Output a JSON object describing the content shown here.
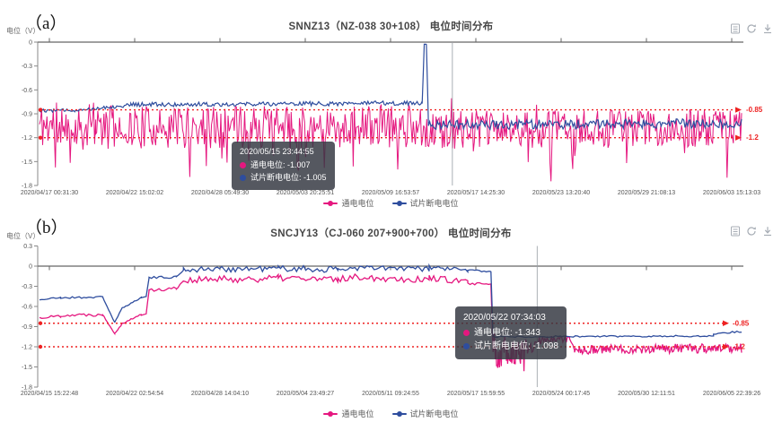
{
  "figure_labels": {
    "a": "（a）",
    "b": "（b）"
  },
  "colors": {
    "pink": "#e5177f",
    "blue": "#2e4d9e",
    "threshold_red": "#ee2222",
    "axis": "#666666",
    "tick_text": "#555555",
    "pointer_gray": "#9aa0a6",
    "tooltip_bg": "rgba(52,56,66,0.84)",
    "icon_gray": "#a7adb5"
  },
  "charts": [
    {
      "id": "a",
      "title": "SNNZ13（NZ-038  30+108） 电位时间分布",
      "y_axis_name": "电位（V）",
      "toolbox": [
        "data-view-icon",
        "refresh-icon",
        "download-icon"
      ],
      "legend": [
        {
          "key": "on-potential",
          "name": "通电电位",
          "color": "#e5177f"
        },
        {
          "key": "coupon-off-potential",
          "name": "试片断电电位",
          "color": "#2e4d9e"
        }
      ],
      "tooltip": {
        "header": "2020/05/15 23:44:55",
        "rows": [
          {
            "name": "通电电位",
            "value": "-1.007",
            "color": "#e5177f"
          },
          {
            "name": "试片断电电位",
            "value": "-1.005",
            "color": "#2e4d9e"
          }
        ]
      },
      "chart_data": {
        "type": "line",
        "title": "SNNZ13（NZ-038  30+108） 电位时间分布",
        "ylabel": "电位（V）",
        "ylim": [
          -1.8,
          0
        ],
        "grid": false,
        "legend_position": "bottom",
        "x_ticks": [
          "2020/04/17 00:31:30",
          "2020/04/22 15:02:02",
          "2020/04/28 05:49:30",
          "2020/05/03 20:25:51",
          "2020/05/09 16:53:57",
          "2020/05/17 14:25:30",
          "2020/05/23 13:20:40",
          "2020/05/29 21:08:13",
          "2020/06/03 15:13:03"
        ],
        "y_tick_values": [
          0,
          -0.3,
          -0.6,
          -0.9,
          -1.2,
          -1.5,
          -1.8
        ],
        "y_tick_labels": [
          "0",
          "-0.3",
          "-0.6",
          "-0.9",
          "-1.2",
          "-1.5",
          "-1.8"
        ],
        "threshold_lines": [
          {
            "value": -0.85,
            "label": "-0.85"
          },
          {
            "value": -1.2,
            "label": "-1.2"
          }
        ],
        "axis_pointer_x_frac": 0.588,
        "series": [
          {
            "key": "on-potential",
            "name": "通电电位",
            "color": "#e5177f",
            "seed": 11,
            "density": 680,
            "width": 1,
            "segments": [
              {
                "t0": 0.0,
                "t1": 0.08,
                "v0": -1.04,
                "v1": -1.06,
                "a": 0.3,
                "spiky": true
              },
              {
                "t0": 0.08,
                "t1": 0.55,
                "v0": -1.07,
                "v1": -1.05,
                "a": 0.27,
                "spiky": true
              },
              {
                "t0": 0.55,
                "t1": 1.0,
                "v0": -1.1,
                "v1": -1.08,
                "a": 0.24,
                "spiky": true
              }
            ]
          },
          {
            "key": "coupon-off-potential",
            "name": "试片断电电位",
            "color": "#2e4d9e",
            "seed": 12,
            "density": 560,
            "width": 1.2,
            "segments": [
              {
                "t0": 0.0,
                "t1": 0.05,
                "v0": -0.86,
                "v1": -0.855,
                "a": 0.02
              },
              {
                "t0": 0.05,
                "t1": 0.13,
                "v0": -0.855,
                "v1": -0.79,
                "a": 0.022
              },
              {
                "t0": 0.13,
                "t1": 0.545,
                "v0": -0.785,
                "v1": -0.765,
                "a": 0.028
              },
              {
                "t0": 0.545,
                "t1": 0.548,
                "v0": -0.77,
                "v1": -0.03,
                "a": 0.004,
                "n": 3
              },
              {
                "t0": 0.548,
                "t1": 0.551,
                "v0": -0.03,
                "v1": -0.025,
                "a": 0.004,
                "n": 2
              },
              {
                "t0": 0.551,
                "t1": 0.554,
                "v0": -0.025,
                "v1": -1.03,
                "a": 0.004,
                "n": 3
              },
              {
                "t0": 0.554,
                "t1": 1.0,
                "v0": -1.04,
                "v1": -1.02,
                "a": 0.06
              }
            ]
          }
        ]
      }
    },
    {
      "id": "b",
      "title": "SNCJY13（CJ-060 207+900+700） 电位时间分布",
      "y_axis_name": "电位（V）",
      "toolbox": [
        "data-view-icon",
        "refresh-icon",
        "download-icon"
      ],
      "legend": [
        {
          "key": "on-potential",
          "name": "通电电位",
          "color": "#e5177f"
        },
        {
          "key": "coupon-off-potential",
          "name": "试片断电电位",
          "color": "#2e4d9e"
        }
      ],
      "tooltip": {
        "header": "2020/05/22 07:34:03",
        "rows": [
          {
            "name": "通电电位",
            "value": "-1.343",
            "color": "#e5177f"
          },
          {
            "name": "试片断电电位",
            "value": "-1.098",
            "color": "#2e4d9e"
          }
        ]
      },
      "chart_data": {
        "type": "line",
        "title": "SNCJY13（CJ-060 207+900+700） 电位时间分布",
        "ylabel": "电位（V）",
        "ylim": [
          -1.8,
          0.3
        ],
        "grid": false,
        "legend_position": "bottom",
        "x_ticks": [
          "2020/04/15 15:22:48",
          "2020/04/22 02:54:54",
          "2020/04/28 14:04:10",
          "2020/05/04 23:49:27",
          "2020/05/11 09:24:55",
          "2020/05/17 15:59:55",
          "2020/05/24 00:17:45",
          "2020/05/30 12:11:51",
          "2020/06/05 22:39:26"
        ],
        "y_tick_values": [
          0.3,
          0,
          -0.3,
          -0.6,
          -0.9,
          -1.2,
          -1.5,
          -1.8
        ],
        "y_tick_labels": [
          "0.3",
          "0",
          "-0.3",
          "-0.6",
          "-0.9",
          "-1.2",
          "-1.5",
          "-1.8"
        ],
        "threshold_lines": [
          {
            "value": -0.85,
            "label": "-0.85"
          },
          {
            "value": -1.2,
            "label": "-1.2"
          }
        ],
        "axis_pointer_x_frac": 0.709,
        "series": [
          {
            "key": "on-potential",
            "name": "通电电位",
            "color": "#e5177f",
            "seed": 22,
            "density": 320,
            "width": 1.3,
            "segments": [
              {
                "t0": 0.0,
                "t1": 0.03,
                "v0": -0.77,
                "v1": -0.74,
                "a": 0.02
              },
              {
                "t0": 0.03,
                "t1": 0.09,
                "v0": -0.73,
                "v1": -0.72,
                "a": 0.025
              },
              {
                "t0": 0.09,
                "t1": 0.107,
                "v0": -0.72,
                "v1": -1.0,
                "a": 0.01,
                "n": 9
              },
              {
                "t0": 0.107,
                "t1": 0.118,
                "v0": -1.0,
                "v1": -0.85,
                "a": 0.01,
                "n": 6
              },
              {
                "t0": 0.118,
                "t1": 0.145,
                "v0": -0.85,
                "v1": -0.72,
                "a": 0.012,
                "n": 12
              },
              {
                "t0": 0.145,
                "t1": 0.152,
                "v0": -0.72,
                "v1": -0.7,
                "a": 0.02
              },
              {
                "t0": 0.152,
                "t1": 0.156,
                "v0": -0.7,
                "v1": -0.37,
                "a": 0.008,
                "n": 3
              },
              {
                "t0": 0.156,
                "t1": 0.195,
                "v0": -0.36,
                "v1": -0.33,
                "a": 0.025
              },
              {
                "t0": 0.195,
                "t1": 0.205,
                "v0": -0.33,
                "v1": -0.22,
                "a": 0.015,
                "n": 5
              },
              {
                "t0": 0.205,
                "t1": 0.34,
                "v0": -0.21,
                "v1": -0.18,
                "a": 0.055
              },
              {
                "t0": 0.34,
                "t1": 0.425,
                "v0": -0.17,
                "v1": -0.21,
                "a": 0.06
              },
              {
                "t0": 0.425,
                "t1": 0.47,
                "v0": -0.19,
                "v1": -0.15,
                "a": 0.05
              },
              {
                "t0": 0.47,
                "t1": 0.555,
                "v0": -0.17,
                "v1": -0.2,
                "a": 0.055
              },
              {
                "t0": 0.555,
                "t1": 0.61,
                "v0": -0.17,
                "v1": -0.24,
                "a": 0.045
              },
              {
                "t0": 0.61,
                "t1": 0.643,
                "v0": -0.26,
                "v1": -0.28,
                "a": 0.025
              },
              {
                "t0": 0.643,
                "t1": 0.646,
                "v0": -0.28,
                "v1": -1.28,
                "a": 0.006,
                "n": 3
              },
              {
                "t0": 0.646,
                "t1": 0.695,
                "v0": -1.32,
                "v1": -1.28,
                "a": 0.2,
                "n": 60,
                "spiky": true
              },
              {
                "t0": 0.695,
                "t1": 0.715,
                "v0": -1.25,
                "v1": -1.1,
                "a": 0.08,
                "n": 14
              },
              {
                "t0": 0.715,
                "t1": 0.755,
                "v0": -1.08,
                "v1": -1.1,
                "a": 0.05,
                "n": 26
              },
              {
                "t0": 0.755,
                "t1": 0.762,
                "v0": -1.1,
                "v1": -1.24,
                "a": 0.02,
                "n": 4
              },
              {
                "t0": 0.762,
                "t1": 1.0,
                "v0": -1.24,
                "v1": -1.22,
                "a": 0.07,
                "n": 170
              }
            ]
          },
          {
            "key": "coupon-off-potential",
            "name": "试片断电电位",
            "color": "#2e4d9e",
            "seed": 21,
            "density": 320,
            "width": 1.3,
            "segments": [
              {
                "t0": 0.0,
                "t1": 0.03,
                "v0": -0.5,
                "v1": -0.47,
                "a": 0.012
              },
              {
                "t0": 0.03,
                "t1": 0.09,
                "v0": -0.47,
                "v1": -0.46,
                "a": 0.015
              },
              {
                "t0": 0.09,
                "t1": 0.107,
                "v0": -0.46,
                "v1": -0.84,
                "a": 0.008,
                "n": 9
              },
              {
                "t0": 0.107,
                "t1": 0.118,
                "v0": -0.84,
                "v1": -0.62,
                "a": 0.008,
                "n": 6
              },
              {
                "t0": 0.118,
                "t1": 0.145,
                "v0": -0.62,
                "v1": -0.47,
                "a": 0.01,
                "n": 12
              },
              {
                "t0": 0.145,
                "t1": 0.152,
                "v0": -0.46,
                "v1": -0.44,
                "a": 0.012
              },
              {
                "t0": 0.152,
                "t1": 0.156,
                "v0": -0.44,
                "v1": -0.18,
                "a": 0.005,
                "n": 3
              },
              {
                "t0": 0.156,
                "t1": 0.195,
                "v0": -0.175,
                "v1": -0.16,
                "a": 0.018
              },
              {
                "t0": 0.195,
                "t1": 0.205,
                "v0": -0.16,
                "v1": -0.06,
                "a": 0.01,
                "n": 5
              },
              {
                "t0": 0.205,
                "t1": 0.34,
                "v0": -0.05,
                "v1": -0.035,
                "a": 0.045
              },
              {
                "t0": 0.34,
                "t1": 0.425,
                "v0": -0.03,
                "v1": -0.055,
                "a": 0.05
              },
              {
                "t0": 0.425,
                "t1": 0.47,
                "v0": -0.04,
                "v1": -0.02,
                "a": 0.04
              },
              {
                "t0": 0.47,
                "t1": 0.555,
                "v0": -0.03,
                "v1": -0.045,
                "a": 0.045
              },
              {
                "t0": 0.555,
                "t1": 0.61,
                "v0": -0.02,
                "v1": -0.06,
                "a": 0.035
              },
              {
                "t0": 0.61,
                "t1": 0.643,
                "v0": -0.065,
                "v1": -0.075,
                "a": 0.02
              },
              {
                "t0": 0.643,
                "t1": 0.646,
                "v0": -0.075,
                "v1": -1.04,
                "a": 0.004,
                "n": 3
              },
              {
                "t0": 0.646,
                "t1": 0.96,
                "v0": -1.05,
                "v1": -1.04,
                "a": 0.012
              },
              {
                "t0": 0.96,
                "t1": 1.0,
                "v0": -1.01,
                "v1": -0.97,
                "a": 0.015
              }
            ]
          }
        ]
      }
    }
  ]
}
